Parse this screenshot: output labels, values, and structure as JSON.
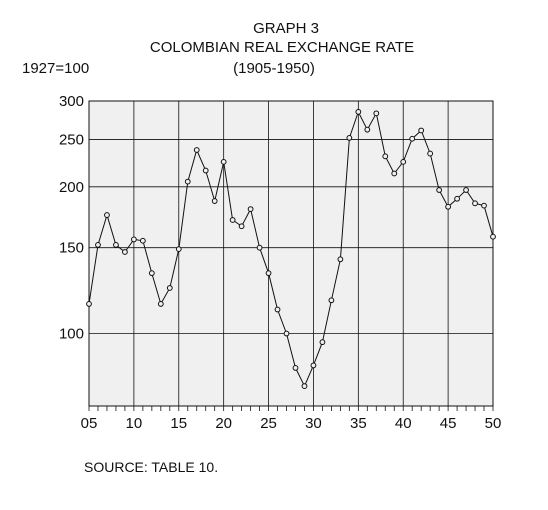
{
  "header": {
    "graph_label": "GRAPH 3",
    "title": "COLOMBIAN REAL EXCHANGE RATE",
    "period": "(1905-1950)",
    "base": "1927=100"
  },
  "footer": {
    "source": "SOURCE: TABLE 10."
  },
  "chart_data": {
    "type": "line",
    "title": "COLOMBIAN REAL EXCHANGE RATE",
    "subtitle": "(1905-1950)",
    "ylabel": "1927=100",
    "xlabel": "",
    "y_scale": "log",
    "ylim": [
      71,
      300
    ],
    "xlim": [
      1905,
      1950
    ],
    "y_ticks": [
      100,
      150,
      200,
      250,
      300
    ],
    "x_ticks": [
      1905,
      1910,
      1915,
      1920,
      1925,
      1930,
      1935,
      1940,
      1945,
      1950
    ],
    "x_tick_labels": [
      "05",
      "10",
      "15",
      "20",
      "25",
      "30",
      "35",
      "40",
      "45",
      "50"
    ],
    "grid": true,
    "marker": "open-circle",
    "series": [
      {
        "x": [
          1905,
          1906,
          1907,
          1908,
          1909,
          1910,
          1911,
          1912,
          1913,
          1914,
          1915,
          1916,
          1917,
          1918,
          1919,
          1920,
          1921,
          1922,
          1923,
          1924,
          1925,
          1926,
          1927,
          1928,
          1929,
          1930,
          1931,
          1932,
          1933,
          1934,
          1935,
          1936,
          1937,
          1938,
          1939,
          1940,
          1941,
          1942,
          1943,
          1944,
          1945,
          1946,
          1947,
          1948,
          1949,
          1950
        ],
        "values": [
          115,
          152,
          175,
          152,
          147,
          156,
          155,
          133,
          115,
          124,
          149,
          205,
          238,
          216,
          187,
          225,
          171,
          166,
          180,
          150,
          133,
          112,
          100,
          85,
          78,
          86,
          96,
          117,
          142,
          252,
          285,
          262,
          283,
          231,
          213,
          225,
          251,
          261,
          234,
          197,
          182,
          189,
          197,
          185,
          183,
          158
        ]
      }
    ]
  },
  "style": {
    "plot_background": "#f0f0f0",
    "line_color": "#111111",
    "grid_color": "#111111"
  }
}
